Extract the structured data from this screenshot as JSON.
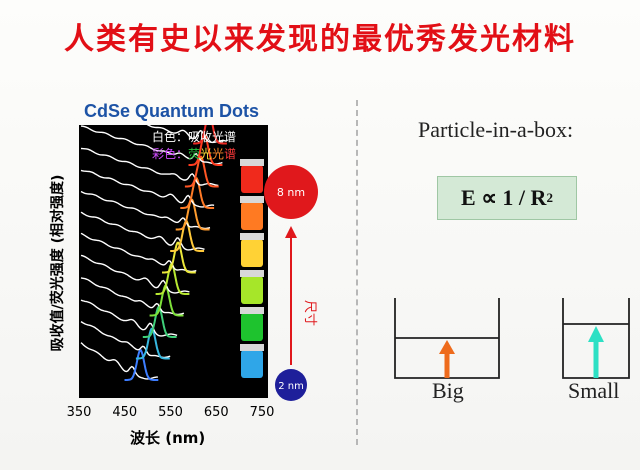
{
  "title": "人类有史以来发现的最优秀发光材料",
  "figure": {
    "title": "CdSe Quantum Dots",
    "legend_white": "白色：吸收光谱",
    "legend_color": {
      "prefix": "彩色：",
      "chars": [
        "荧",
        "光",
        "光",
        "谱"
      ],
      "colors": [
        "#26c43f",
        "#ffe13a",
        "#ff8a2a",
        "#ff3a3a"
      ],
      "prefix_color": "#d04cff"
    },
    "ylabel": "吸收值/荧光强度 (相对强度)",
    "xlabel": "波长 (nm)",
    "x_ticks": [
      "350",
      "450",
      "550",
      "650",
      "750"
    ],
    "size_large": "8 nm",
    "size_small": "2 nm",
    "size_axis": "尺寸"
  },
  "chart_data": {
    "type": "line",
    "x_range": [
      350,
      750
    ],
    "xlabel": "波长 (nm)",
    "ylabel": "吸收值/荧光强度 (相对强度)",
    "series": [
      {
        "peak": 480,
        "color": "#3d7dff",
        "vial": "#2fa6e8"
      },
      {
        "peak": 505,
        "color": "#37b8e0",
        "vial": "#3bd0d8"
      },
      {
        "peak": 520,
        "color": "#3fd07a",
        "vial": "#1ec32e"
      },
      {
        "peak": 535,
        "color": "#7ee13a",
        "vial": "#3cd420"
      },
      {
        "peak": 548,
        "color": "#b8e832",
        "vial": "#a6e629"
      },
      {
        "peak": 562,
        "color": "#ece83a",
        "vial": "#e6ec2e"
      },
      {
        "peak": 580,
        "color": "#ffc93a",
        "vial": "#ffd235"
      },
      {
        "peak": 592,
        "color": "#ff9c2e",
        "vial": "#ffa22f"
      },
      {
        "peak": 602,
        "color": "#ff7a26",
        "vial": "#ff7a22"
      },
      {
        "peak": 612,
        "color": "#ff5524",
        "vial": "#ff4b20"
      },
      {
        "peak": 620,
        "color": "#ff3c20",
        "vial": "#f02a1c"
      },
      {
        "peak": 630,
        "color": "#ee2a22",
        "vial": "#e0201a"
      }
    ]
  },
  "right": {
    "heading": "Particle-in-a-box:",
    "formula": "E ∝ 1 / R",
    "formula_exp": "2",
    "big_label": "Big",
    "small_label": "Small"
  }
}
